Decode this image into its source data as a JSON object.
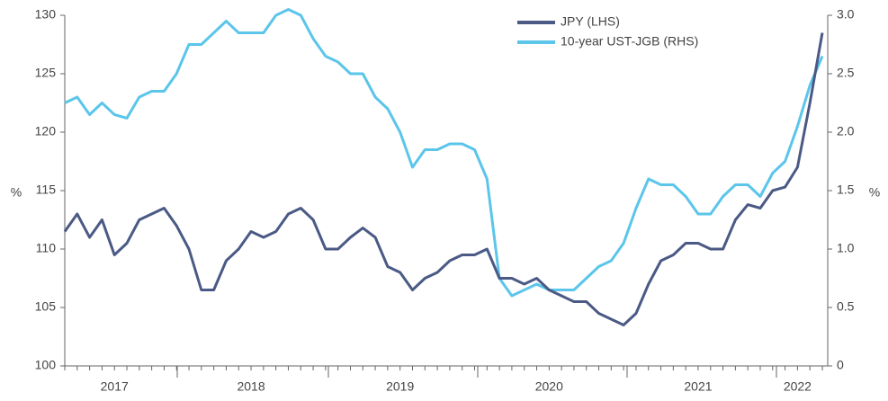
{
  "chart_data": {
    "type": "line",
    "categories": [
      null,
      null,
      null,
      null,
      "2017",
      null,
      null,
      null,
      null,
      null,
      null,
      null,
      null,
      null,
      null,
      "2018",
      null,
      null,
      null,
      null,
      null,
      null,
      null,
      null,
      null,
      null,
      null,
      "2019",
      null,
      null,
      null,
      null,
      null,
      null,
      null,
      null,
      null,
      null,
      null,
      "2020",
      null,
      null,
      null,
      null,
      null,
      null,
      null,
      null,
      null,
      null,
      null,
      "2021",
      null,
      null,
      null,
      null,
      null,
      null,
      null,
      "2022",
      null,
      null
    ],
    "series": [
      {
        "name": "JPY (LHS)",
        "color": "#4a5a85",
        "axis": "y",
        "values": [
          111.5,
          113,
          111,
          112.5,
          109.5,
          110.5,
          112.5,
          113,
          113.5,
          112,
          110,
          106.5,
          106.5,
          109,
          110,
          111.5,
          111,
          111.5,
          113,
          113.5,
          112.5,
          110,
          110,
          111,
          111.8,
          111,
          108.5,
          108,
          106.5,
          107.5,
          108,
          109,
          109.5,
          109.5,
          110,
          107.5,
          107.5,
          107,
          107.5,
          106.5,
          106,
          105.5,
          105.5,
          104.5,
          104,
          103.5,
          104.5,
          107,
          109,
          109.5,
          110.5,
          110.5,
          110,
          110,
          112.5,
          113.8,
          113.5,
          115,
          115.3,
          117,
          122.5,
          128.5
        ]
      },
      {
        "name": "10-year UST-JGB (RHS)",
        "color": "#5bc5ea",
        "axis": "y2",
        "values": [
          2.25,
          2.3,
          2.15,
          2.25,
          2.15,
          2.12,
          2.3,
          2.35,
          2.35,
          2.5,
          2.75,
          2.75,
          2.85,
          2.95,
          2.85,
          2.85,
          2.85,
          3.0,
          3.05,
          3.0,
          2.8,
          2.65,
          2.6,
          2.5,
          2.5,
          2.3,
          2.2,
          2.0,
          1.7,
          1.85,
          1.85,
          1.9,
          1.9,
          1.85,
          1.6,
          0.75,
          0.6,
          0.65,
          0.7,
          0.65,
          0.65,
          0.65,
          0.75,
          0.85,
          0.9,
          1.05,
          1.35,
          1.6,
          1.55,
          1.55,
          1.45,
          1.3,
          1.3,
          1.45,
          1.55,
          1.55,
          1.45,
          1.65,
          1.75,
          2.05,
          2.4,
          2.65
        ]
      }
    ],
    "ylabel": "%",
    "y2label": "%",
    "ylim": [
      100,
      130
    ],
    "yticks": [
      100,
      105,
      110,
      115,
      120,
      125,
      130
    ],
    "y2lim": [
      0,
      3.0
    ],
    "y2ticks": [
      0,
      0.5,
      {
        "value": 1,
        "label": "1.0"
      },
      1.5,
      {
        "value": 2,
        "label": "2.0"
      },
      2.5,
      {
        "value": 3,
        "label": "3.0"
      }
    ],
    "grid": false,
    "legend": "top-right"
  }
}
